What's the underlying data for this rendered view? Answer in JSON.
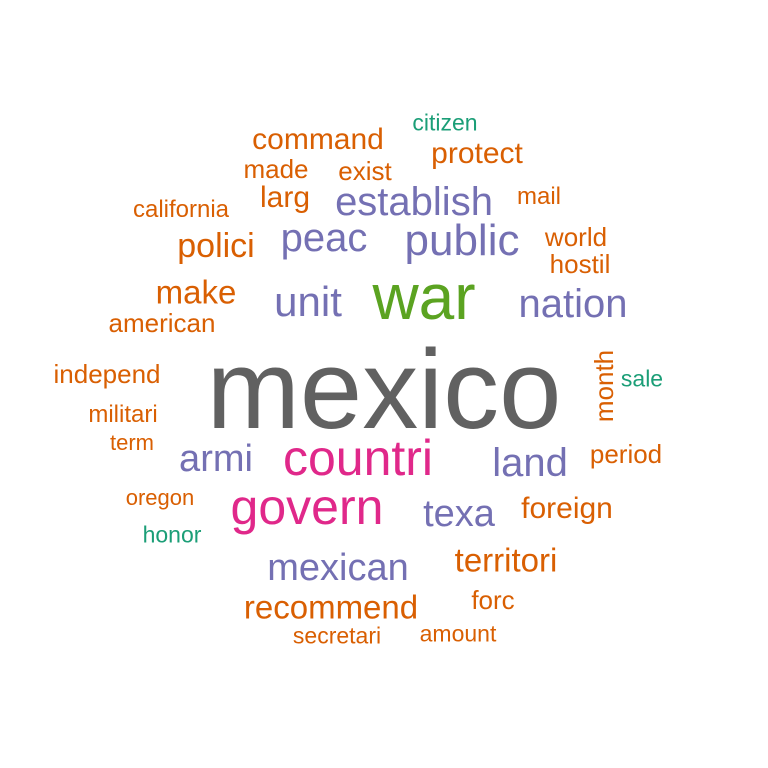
{
  "words": [
    {
      "text": "mexico",
      "color": "#616161",
      "weight": 1.0
    },
    {
      "text": "war",
      "color": "#5ba321",
      "weight": 0.52
    },
    {
      "text": "countri",
      "color": "#e0288a",
      "weight": 0.42
    },
    {
      "text": "govern",
      "color": "#e0288a",
      "weight": 0.42
    },
    {
      "text": "public",
      "color": "#7470b3",
      "weight": 0.36
    },
    {
      "text": "unit",
      "color": "#7470b3",
      "weight": 0.34
    },
    {
      "text": "establish",
      "color": "#7470b3",
      "weight": 0.32
    },
    {
      "text": "peac",
      "color": "#7470b3",
      "weight": 0.32
    },
    {
      "text": "nation",
      "color": "#7470b3",
      "weight": 0.32
    },
    {
      "text": "land",
      "color": "#7470b3",
      "weight": 0.32
    },
    {
      "text": "armi",
      "color": "#7470b3",
      "weight": 0.3
    },
    {
      "text": "texa",
      "color": "#7470b3",
      "weight": 0.3
    },
    {
      "text": "mexican",
      "color": "#7470b3",
      "weight": 0.3
    },
    {
      "text": "polici",
      "color": "#d95f02",
      "weight": 0.26
    },
    {
      "text": "make",
      "color": "#d95f02",
      "weight": 0.25
    },
    {
      "text": "territori",
      "color": "#d95f02",
      "weight": 0.25
    },
    {
      "text": "recommend",
      "color": "#d95f02",
      "weight": 0.25
    },
    {
      "text": "command",
      "color": "#d95f02",
      "weight": 0.22
    },
    {
      "text": "larg",
      "color": "#d95f02",
      "weight": 0.22
    },
    {
      "text": "protect",
      "color": "#d95f02",
      "weight": 0.22
    },
    {
      "text": "foreign",
      "color": "#d95f02",
      "weight": 0.22
    },
    {
      "text": "american",
      "color": "#d95f02",
      "weight": 0.19
    },
    {
      "text": "independ",
      "color": "#d95f02",
      "weight": 0.19
    },
    {
      "text": "exist",
      "color": "#d95f02",
      "weight": 0.19
    },
    {
      "text": "made",
      "color": "#d95f02",
      "weight": 0.19
    },
    {
      "text": "month",
      "color": "#d95f02",
      "weight": 0.19
    },
    {
      "text": "period",
      "color": "#d95f02",
      "weight": 0.19
    },
    {
      "text": "forc",
      "color": "#d95f02",
      "weight": 0.19
    },
    {
      "text": "world",
      "color": "#d95f02",
      "weight": 0.19
    },
    {
      "text": "hostil",
      "color": "#d95f02",
      "weight": 0.19
    },
    {
      "text": "california",
      "color": "#d95f02",
      "weight": 0.17
    },
    {
      "text": "militari",
      "color": "#d95f02",
      "weight": 0.17
    },
    {
      "text": "mail",
      "color": "#d95f02",
      "weight": 0.17
    },
    {
      "text": "secretari",
      "color": "#d95f02",
      "weight": 0.16
    },
    {
      "text": "amount",
      "color": "#d95f02",
      "weight": 0.16
    },
    {
      "text": "oregon",
      "color": "#d95f02",
      "weight": 0.15
    },
    {
      "text": "term",
      "color": "#d95f02",
      "weight": 0.15
    },
    {
      "text": "citizen",
      "color": "#1b9e77",
      "weight": 0.16
    },
    {
      "text": "sale",
      "color": "#1b9e77",
      "weight": 0.16
    },
    {
      "text": "honor",
      "color": "#1b9e77",
      "weight": 0.16
    }
  ]
}
